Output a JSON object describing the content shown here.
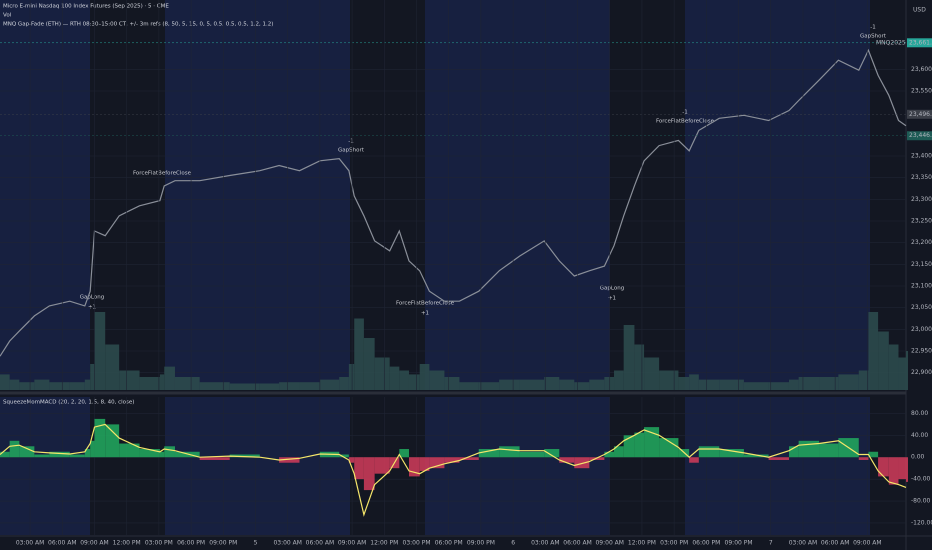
{
  "chart_data": [
    {
      "type": "line",
      "title": "Micro E-mini Nasdaq 100 Index Futures (Sep 2025) · 5 · CME",
      "subtitle": "Vol",
      "strategy_label": "MNQ Gap-Fade (ETH) — RTH 08:30–15:00 CT, +/- 3m refs (8, 50, 5, 15, 0, 5, 0.5, 0.5, 0.5, 1.2, 1.2)",
      "currency": "USD",
      "x": [
        0.2,
        1.1,
        2.0,
        3.4,
        4.8,
        6.7,
        8.1,
        8.6,
        9.0,
        10.0,
        11.3,
        13.2,
        15.1,
        15.5,
        16.5,
        18.8,
        21.6,
        24.4,
        26.2,
        28.1,
        30.0,
        31.8,
        32.7,
        33.2,
        34.1,
        35.1,
        36.5,
        37.4,
        38.3,
        39.3,
        40.2,
        41.6,
        43.0,
        44.8,
        46.7,
        48.6,
        50.9,
        52.3,
        53.7,
        55.1,
        56.5,
        57.4,
        58.3,
        59.3,
        60.2,
        61.6,
        63.4,
        64.4,
        65.3,
        67.2,
        69.5,
        71.8,
        73.7,
        74.6,
        76.5,
        78.3,
        80.2,
        81.1,
        82.0,
        83.0,
        83.9,
        84.6
      ],
      "xlim": [
        0.2,
        84.6
      ],
      "series": [
        {
          "name": "MNQ",
          "color": "#8a8f99",
          "values": [
            22938,
            22973,
            22996,
            23031,
            23054,
            23065,
            23054,
            23088,
            23227,
            23216,
            23262,
            23285,
            23297,
            23331,
            23343,
            23343,
            23355,
            23366,
            23378,
            23366,
            23389,
            23394,
            23366,
            23308,
            23262,
            23204,
            23181,
            23227,
            23158,
            23135,
            23088,
            23065,
            23065,
            23088,
            23135,
            23169,
            23204,
            23158,
            23123,
            23135,
            23146,
            23193,
            23262,
            23331,
            23389,
            23424,
            23436,
            23412,
            23459,
            23487,
            23494,
            23482,
            23505,
            23528,
            23575,
            23621,
            23598,
            23644,
            23586,
            23540,
            23482,
            23470
          ]
        },
        {
          "name": "Vol",
          "type": "bar",
          "axis": "y2",
          "color": "#2c4a4c",
          "values": [
            12,
            8,
            6,
            8,
            6,
            6,
            8,
            20,
            60,
            35,
            15,
            10,
            12,
            18,
            10,
            6,
            5,
            5,
            6,
            6,
            8,
            10,
            20,
            55,
            40,
            25,
            18,
            15,
            12,
            20,
            15,
            10,
            6,
            6,
            8,
            8,
            10,
            8,
            6,
            8,
            10,
            15,
            50,
            35,
            25,
            15,
            10,
            12,
            8,
            8,
            6,
            6,
            8,
            10,
            10,
            12,
            15,
            60,
            45,
            35,
            25,
            30
          ]
        }
      ],
      "ylim": [
        22860,
        23760
      ],
      "y2lim": [
        0,
        300
      ],
      "yticks": [
        {
          "value": 23600,
          "label": "23,600.00"
        },
        {
          "value": 23550,
          "label": "23,550.00"
        },
        {
          "value": 23400,
          "label": "23,400.00"
        },
        {
          "value": 23350,
          "label": "23,350.00"
        },
        {
          "value": 23300,
          "label": "23,300.00"
        },
        {
          "value": 23250,
          "label": "23,250.00"
        },
        {
          "value": 23200,
          "label": "23,200.00"
        },
        {
          "value": 23150,
          "label": "23,150.00"
        },
        {
          "value": 23100,
          "label": "23,100.00"
        },
        {
          "value": 23050,
          "label": "23,050.00"
        },
        {
          "value": 23000,
          "label": "23,000.00"
        },
        {
          "value": 22950,
          "label": "22,950.00"
        },
        {
          "value": 22900,
          "label": "22,900.00"
        }
      ],
      "price_tags": [
        {
          "value": 23661.25,
          "label": "23,661.25",
          "color": "#26a69a"
        },
        {
          "value": 23496.25,
          "label": "23,496.25",
          "color": "#3b3f48"
        },
        {
          "value": 23446.75,
          "label": "23,446.75",
          "color": "#1e5b55"
        }
      ],
      "price_tag_name": "MNQ2025",
      "annotations": [
        "GapLong",
        "+1",
        "ForceFlatBeforeClose",
        "-1",
        "GapShort",
        "ForceFlatBeforeClose",
        "+1",
        "GapLong",
        "+1",
        "ForceFlatBeforeClose",
        "-1",
        "-1",
        "GapShort"
      ]
    },
    {
      "type": "bar",
      "title": "SqueezeMomMACD (20, 2, 20, 1.5, 8, 40, close)",
      "x": [
        0.2,
        1.1,
        2.0,
        3.4,
        4.8,
        6.7,
        8.1,
        8.6,
        9.0,
        10.0,
        11.3,
        13.2,
        15.1,
        15.5,
        16.5,
        18.8,
        21.6,
        24.4,
        26.2,
        28.1,
        30.0,
        31.8,
        32.7,
        33.2,
        34.1,
        35.1,
        36.5,
        37.4,
        38.3,
        39.3,
        40.2,
        41.6,
        43.0,
        44.8,
        46.7,
        48.6,
        50.9,
        52.3,
        53.7,
        55.1,
        56.5,
        57.4,
        58.3,
        59.3,
        60.2,
        61.6,
        63.4,
        64.4,
        65.3,
        67.2,
        69.5,
        71.8,
        73.7,
        74.6,
        76.5,
        78.3,
        80.2,
        81.1,
        82.0,
        83.0,
        83.9,
        84.6
      ],
      "xlim": [
        0.2,
        84.6
      ],
      "series": [
        {
          "name": "Momentum",
          "color": "#22ab5f",
          "negative_color": "#d23c5a",
          "values": [
            10,
            30,
            20,
            5,
            10,
            5,
            15,
            30,
            70,
            60,
            25,
            15,
            10,
            20,
            10,
            -5,
            5,
            0,
            -10,
            0,
            10,
            5,
            -10,
            -40,
            -60,
            -30,
            -20,
            15,
            -35,
            -25,
            -20,
            -10,
            -5,
            15,
            20,
            10,
            15,
            -10,
            -20,
            -5,
            10,
            20,
            40,
            45,
            55,
            35,
            15,
            -10,
            20,
            15,
            5,
            -5,
            20,
            30,
            25,
            35,
            -5,
            10,
            -35,
            -50,
            -40,
            -45
          ]
        },
        {
          "name": "MACD",
          "type": "line",
          "color": "#f5e66a",
          "values": [
            5,
            20,
            22,
            10,
            8,
            6,
            10,
            25,
            55,
            60,
            35,
            18,
            10,
            15,
            12,
            0,
            2,
            0,
            -5,
            -2,
            6,
            5,
            -5,
            -30,
            -105,
            -50,
            -25,
            5,
            -25,
            -30,
            -20,
            -12,
            -6,
            8,
            15,
            12,
            12,
            -5,
            -15,
            -8,
            5,
            15,
            30,
            40,
            50,
            40,
            18,
            0,
            15,
            15,
            8,
            0,
            12,
            22,
            25,
            30,
            5,
            5,
            -25,
            -45,
            -50,
            -55
          ]
        }
      ],
      "ylim": [
        -142,
        110
      ],
      "yticks": [
        {
          "value": 80,
          "label": "80.00"
        },
        {
          "value": 40,
          "label": "40.00"
        },
        {
          "value": 0,
          "label": "0.00"
        },
        {
          "value": -40,
          "label": "-40.00"
        },
        {
          "value": -80,
          "label": "-80.00"
        },
        {
          "value": -120,
          "label": "-120.00"
        }
      ],
      "xticks": [
        {
          "value": 3,
          "label": "03:00 AM"
        },
        {
          "value": 6,
          "label": "06:00 AM"
        },
        {
          "value": 9,
          "label": "09:00 AM"
        },
        {
          "value": 12,
          "label": "12:00 PM"
        },
        {
          "value": 15,
          "label": "03:00 PM"
        },
        {
          "value": 18,
          "label": "06:00 PM"
        },
        {
          "value": 21,
          "label": "09:00 PM"
        },
        {
          "value": 24,
          "label": "5"
        },
        {
          "value": 27,
          "label": "03:00 AM"
        },
        {
          "value": 30,
          "label": "06:00 AM"
        },
        {
          "value": 33,
          "label": "09:00 AM"
        },
        {
          "value": 36,
          "label": "12:00 PM"
        },
        {
          "value": 39,
          "label": "03:00 PM"
        },
        {
          "value": 42,
          "label": "06:00 PM"
        },
        {
          "value": 45,
          "label": "09:00 PM"
        },
        {
          "value": 48,
          "label": "6"
        },
        {
          "value": 51,
          "label": "03:00 AM"
        },
        {
          "value": 54,
          "label": "06:00 AM"
        },
        {
          "value": 57,
          "label": "09:00 AM"
        },
        {
          "value": 60,
          "label": "12:00 PM"
        },
        {
          "value": 63,
          "label": "03:00 PM"
        },
        {
          "value": 66,
          "label": "06:00 PM"
        },
        {
          "value": 69,
          "label": "09:00 PM"
        },
        {
          "value": 72,
          "label": "7"
        },
        {
          "value": 75,
          "label": "03:00 AM"
        },
        {
          "value": 78,
          "label": "06:00 AM"
        },
        {
          "value": 81,
          "label": "09:00 AM"
        }
      ],
      "grid": true
    }
  ]
}
